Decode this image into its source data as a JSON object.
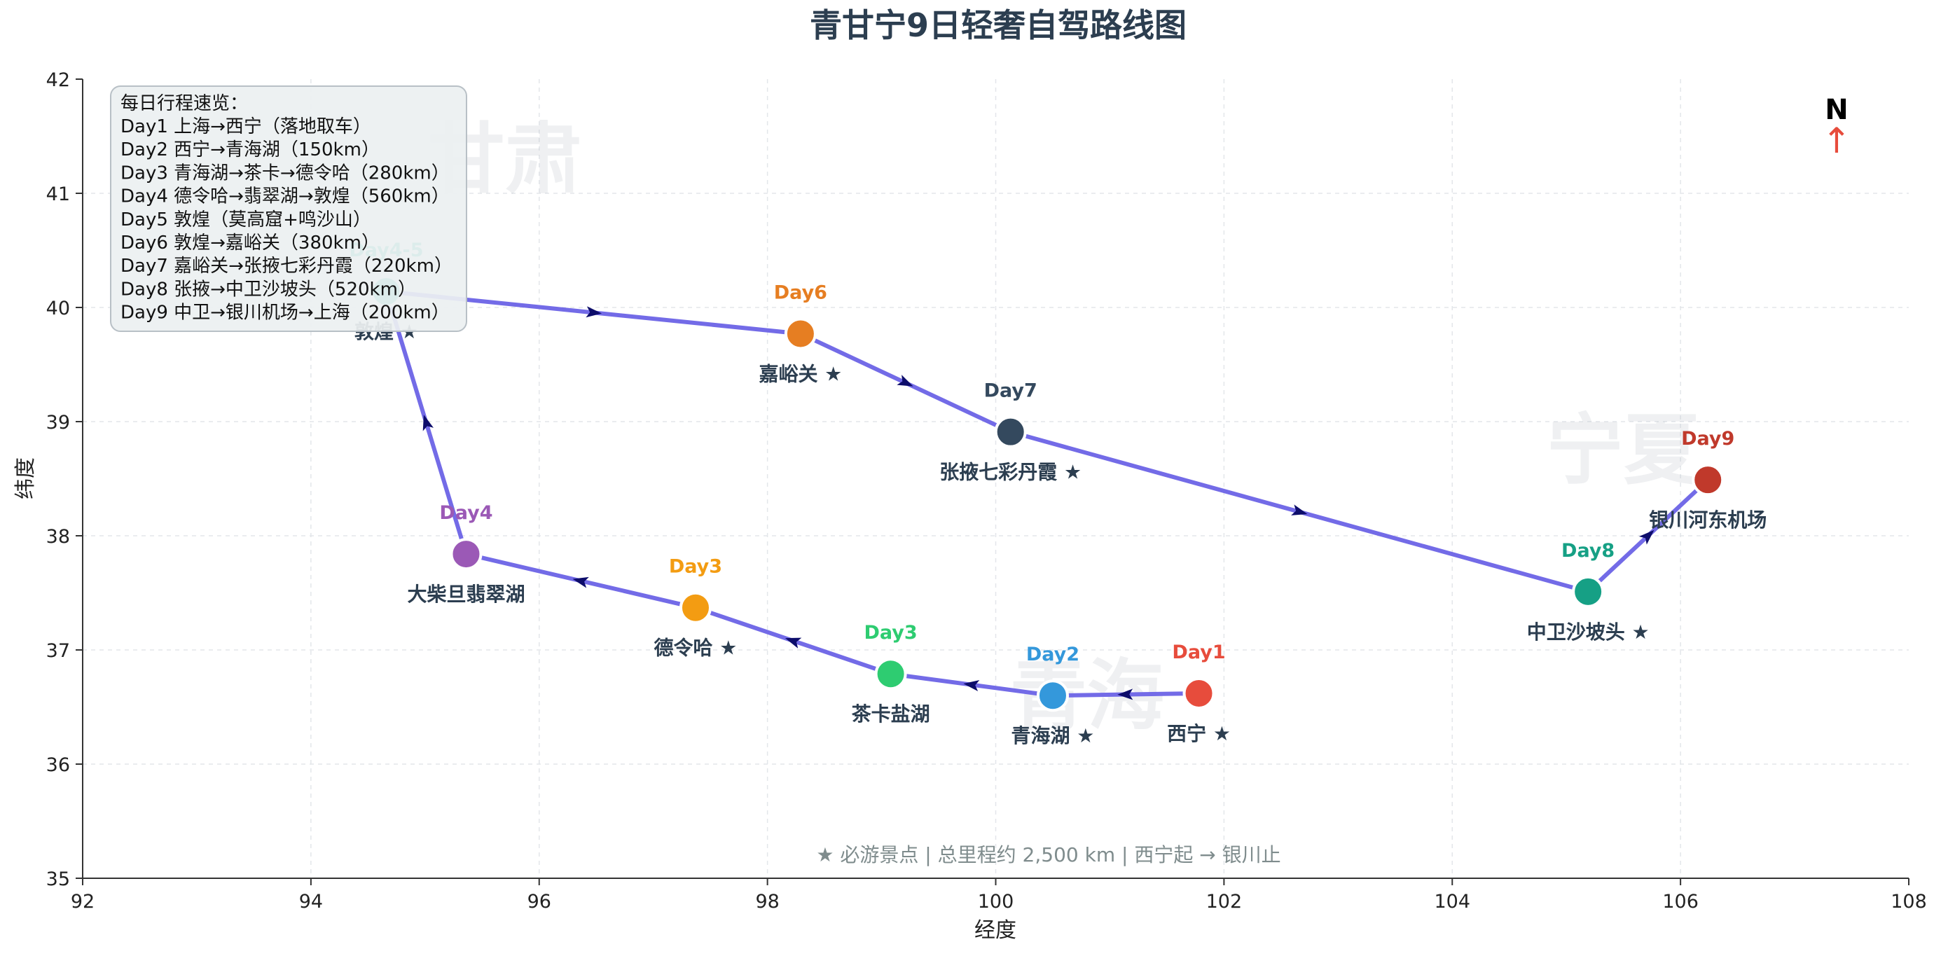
{
  "chart_data": {
    "type": "scatter",
    "title": "青甘宁9日轻奢自驾路线图",
    "xlabel": "经度",
    "ylabel": "纬度",
    "xlim": [
      92,
      108
    ],
    "ylim": [
      35,
      42
    ],
    "xticks": [
      92,
      94,
      96,
      98,
      100,
      102,
      104,
      106,
      108
    ],
    "yticks": [
      35,
      36,
      37,
      38,
      39,
      40,
      41,
      42
    ],
    "grid": true,
    "route_color": "#6c63e6",
    "arrow_color": "#0d0d6b",
    "points": [
      {
        "day": "Day1",
        "place": "西宁 ★",
        "x": 101.78,
        "y": 36.62,
        "color": "#e74c3c"
      },
      {
        "day": "Day2",
        "place": "青海湖 ★",
        "x": 100.5,
        "y": 36.6,
        "color": "#3498db"
      },
      {
        "day": "Day3",
        "place": "茶卡盐湖",
        "x": 99.08,
        "y": 36.79,
        "color": "#2ecc71"
      },
      {
        "day": "Day3",
        "place": "德令哈 ★",
        "x": 97.37,
        "y": 37.37,
        "color": "#f39c12"
      },
      {
        "day": "Day4",
        "place": "大柴旦翡翠湖",
        "x": 95.36,
        "y": 37.84,
        "color": "#9b59b6"
      },
      {
        "day": "Day4-5",
        "place": "敦煌 ★",
        "x": 94.66,
        "y": 40.14,
        "color": "#1abc9c"
      },
      {
        "day": "Day6",
        "place": "嘉峪关 ★",
        "x": 98.29,
        "y": 39.77,
        "color": "#e67e22"
      },
      {
        "day": "Day7",
        "place": "张掖七彩丹霞 ★",
        "x": 100.13,
        "y": 38.91,
        "color": "#34495e"
      },
      {
        "day": "Day8",
        "place": "中卫沙坡头 ★",
        "x": 105.19,
        "y": 37.51,
        "color": "#16a085"
      },
      {
        "day": "Day9",
        "place": "银川河东机场",
        "x": 106.24,
        "y": 38.49,
        "color": "#c0392b"
      }
    ],
    "region_labels": [
      {
        "text": "甘肃",
        "x": 95.7,
        "y": 41.25
      },
      {
        "text": "青海",
        "x": 100.8,
        "y": 36.55
      },
      {
        "text": "宁夏",
        "x": 105.5,
        "y": 38.7
      }
    ],
    "legend": {
      "placement": "top-left",
      "title": "每日行程速览：",
      "lines": [
        "Day1 上海→西宁（落地取车）",
        "Day2 西宁→青海湖（150km）",
        "Day3 青海湖→茶卡→德令哈（280km）",
        "Day4 德令哈→翡翠湖→敦煌（560km）",
        "Day5 敦煌（莫高窟+鸣沙山）",
        "Day6 敦煌→嘉峪关（380km）",
        "Day7 嘉峪关→张掖七彩丹霞（220km）",
        "Day8 张掖→中卫沙坡头（520km）",
        "Day9 中卫→银川机场→上海（200km）"
      ]
    },
    "compass": {
      "label": "N",
      "arrow": "↑",
      "color": "#e74c3c"
    },
    "footer": "★ 必游景点  |  总里程约 2,500 km  |  西宁起 → 银川止"
  }
}
